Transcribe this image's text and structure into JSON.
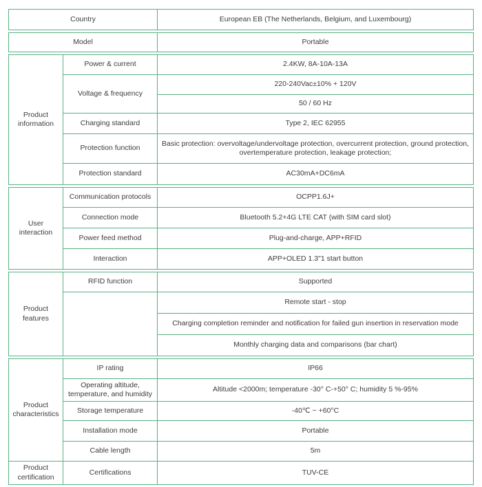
{
  "colors": {
    "border_green": "#56b181",
    "text": "#3b3b3b",
    "background": "#ffffff"
  },
  "country_row": {
    "label": "Country",
    "value": "European EB (The Netherlands, Belgium, and Luxembourg)"
  },
  "model_row": {
    "label": "Model",
    "value": "Portable"
  },
  "product_information": {
    "group": "Product information",
    "power_current": {
      "label": "Power & current",
      "value": "2.4KW, 8A-10A-13A"
    },
    "voltage_frequency": {
      "label": "Voltage & frequency",
      "value1": "220-240Vac±10% + 120V",
      "value2": "50 / 60 Hz"
    },
    "charging_standard": {
      "label": "Charging standard",
      "value": "Type 2, IEC 62955"
    },
    "protection_function": {
      "label": "Protection function",
      "value": "Basic protection: overvoltage/undervoltage protection, overcurrent protection, ground protection, overtemperature protection, leakage protection;"
    },
    "protection_standard": {
      "label": "Protection standard",
      "value": "AC30mA+DC6mA"
    }
  },
  "user_interaction": {
    "group": "User interaction",
    "communication_protocols": {
      "label": "Communication protocols",
      "value": "OCPP1.6J+"
    },
    "connection_mode": {
      "label": "Connection mode",
      "value": "Bluetooth 5.2+4G LTE CAT (with SIM card slot)"
    },
    "power_feed_method": {
      "label": "Power feed method",
      "value": "Plug-and-charge, APP+RFID"
    },
    "interaction": {
      "label": "Interaction",
      "value": "APP+OLED 1.3\"1 start button"
    }
  },
  "product_features": {
    "group": "Product features",
    "rfid_function": {
      "label": "RFID function",
      "value": "Supported"
    },
    "features": [
      "Remote start - stop",
      "Charging completion reminder and notification for failed gun insertion in reservation mode",
      "Monthly charging data and comparisons (bar chart)"
    ]
  },
  "product_characteristics": {
    "group": "Product characteristics",
    "ip_rating": {
      "label": "IP rating",
      "value": "IP66"
    },
    "operating": {
      "label": "Operating altitude, temperature, and humidity",
      "value": "Altitude <2000m; temperature -30° C-+50° C; humidity 5 %-95%"
    },
    "storage_temperature": {
      "label": "Storage temperature",
      "value": "-40℃ ~ +60°C"
    },
    "installation_mode": {
      "label": "Installation mode",
      "value": "Portable"
    },
    "cable_length": {
      "label": "Cable length",
      "value": "5m"
    }
  },
  "product_certification": {
    "group": "Product certification",
    "certifications": {
      "label": "Certifications",
      "value": "TUV-CE"
    }
  }
}
